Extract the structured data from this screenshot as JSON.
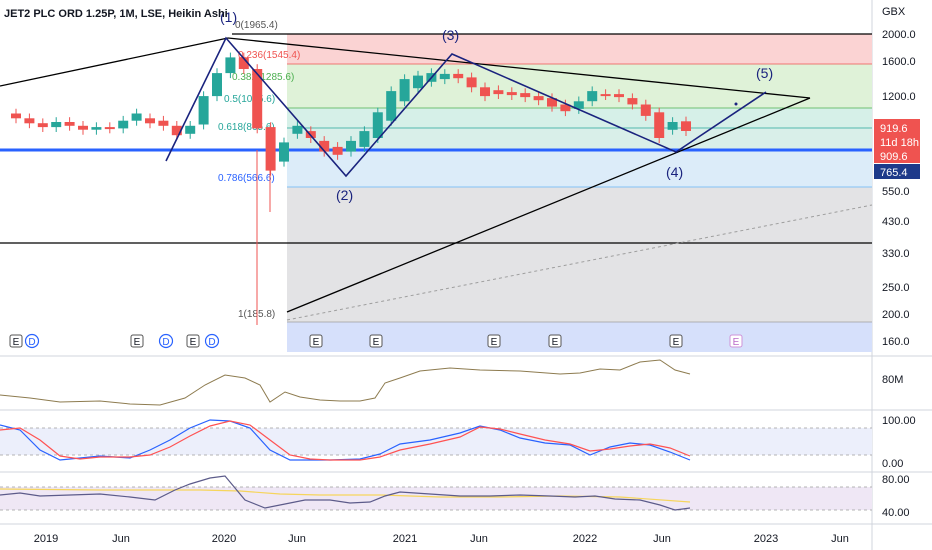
{
  "title": "JET2 PLC ORD 1.25P, 1M, LSE, Heikin Ashi",
  "currency": "GBX",
  "colors": {
    "up": "#26a69a",
    "down": "#ef5350",
    "support": "#2962ff",
    "wave": "#1a237e",
    "volume_line": "#8d7b4f",
    "stoch_k": "#2962ff",
    "stoch_d": "#ff5252",
    "rsi": "#5c5b8a",
    "rsi_ma": "#f6d55c",
    "price_tag": "#ef5350",
    "support_tag": "#1e3a8a"
  },
  "price_axis": {
    "scale": "log",
    "ticks": [
      "2000.0",
      "1600.0",
      "1200.0",
      "919.6",
      "909.6",
      "765.4",
      "550.0",
      "430.0",
      "330.0",
      "250.0",
      "200.0",
      "160.0"
    ],
    "tick_values": [
      2000,
      1600,
      1200,
      919.6,
      909.6,
      765.4,
      550,
      430,
      330,
      250,
      200,
      160
    ],
    "last_price": "919.6",
    "countdown": "11d 18h",
    "prev_close": "909.6",
    "support_value": "765.4"
  },
  "time_axis": {
    "labels": [
      "2019",
      "Jun",
      "2020",
      "Jun",
      "2021",
      "Jun",
      "2022",
      "Jun",
      "2023",
      "Jun"
    ]
  },
  "fib_levels": [
    {
      "ratio": "0",
      "value": "1965.4",
      "label": "0(1965.4)"
    },
    {
      "ratio": "0.236",
      "value": "1545.4",
      "label": "0.236(1545.4)"
    },
    {
      "ratio": "0.382",
      "value": "1285.6",
      "label": "0.382(1285.6)"
    },
    {
      "ratio": "0.5",
      "value": "1075.6",
      "label": "0.5(1075.6)"
    },
    {
      "ratio": "0.618",
      "value": "865.6",
      "label": "0.618(865.6)"
    },
    {
      "ratio": "0.786",
      "value": "566.6",
      "label": "0.786(566.6)"
    },
    {
      "ratio": "1",
      "value": "185.8",
      "label": "1(185.8)"
    }
  ],
  "wave_labels": [
    "(1)",
    "(2)",
    "(3)",
    "(4)",
    "(5)"
  ],
  "earnings_markers": [
    "E",
    "D",
    "E",
    "D",
    "E",
    "D",
    "E",
    "E",
    "E",
    "E",
    "E",
    "E"
  ],
  "volume_label": "80M",
  "stoch_axis": [
    "100.00",
    "0.00"
  ],
  "rsi_axis": [
    "80.00",
    "40.00"
  ],
  "chart_data": {
    "type": "candlestick",
    "series_style": "Heikin Ashi",
    "interval": "1M",
    "candles": [
      {
        "date": "2018-10",
        "open": 1040,
        "close": 1000
      },
      {
        "date": "2018-11",
        "open": 1000,
        "close": 960
      },
      {
        "date": "2018-12",
        "open": 960,
        "close": 930
      },
      {
        "date": "2019-01",
        "open": 930,
        "close": 970
      },
      {
        "date": "2019-02",
        "open": 970,
        "close": 940
      },
      {
        "date": "2019-03",
        "open": 940,
        "close": 910
      },
      {
        "date": "2019-04",
        "open": 910,
        "close": 930
      },
      {
        "date": "2019-05",
        "open": 930,
        "close": 920
      },
      {
        "date": "2019-06",
        "open": 920,
        "close": 980
      },
      {
        "date": "2019-07",
        "open": 980,
        "close": 1040
      },
      {
        "date": "2019-08",
        "open": 1000,
        "close": 960
      },
      {
        "date": "2019-09",
        "open": 980,
        "close": 940
      },
      {
        "date": "2019-10",
        "open": 940,
        "close": 870
      },
      {
        "date": "2019-11",
        "open": 880,
        "close": 940
      },
      {
        "date": "2019-12",
        "open": 950,
        "close": 1200
      },
      {
        "date": "2020-01",
        "open": 1200,
        "close": 1450
      },
      {
        "date": "2020-02",
        "open": 1450,
        "close": 1650
      },
      {
        "date": "2020-03",
        "open": 1650,
        "close": 1500
      },
      {
        "date": "2020-04",
        "open": 1500,
        "close": 920
      },
      {
        "date": "2020-05",
        "open": 930,
        "close": 650
      },
      {
        "date": "2020-06",
        "open": 700,
        "close": 820
      },
      {
        "date": "2020-07",
        "open": 880,
        "close": 940
      },
      {
        "date": "2020-08",
        "open": 900,
        "close": 850
      },
      {
        "date": "2020-09",
        "open": 830,
        "close": 760
      },
      {
        "date": "2020-10",
        "open": 790,
        "close": 740
      },
      {
        "date": "2020-11",
        "open": 760,
        "close": 830
      },
      {
        "date": "2020-12",
        "open": 790,
        "close": 900
      },
      {
        "date": "2021-01",
        "open": 850,
        "close": 1050
      },
      {
        "date": "2021-02",
        "open": 980,
        "close": 1250
      },
      {
        "date": "2021-03",
        "open": 1150,
        "close": 1380
      },
      {
        "date": "2021-04",
        "open": 1280,
        "close": 1420
      },
      {
        "date": "2021-05",
        "open": 1350,
        "close": 1450
      },
      {
        "date": "2021-06",
        "open": 1380,
        "close": 1440
      },
      {
        "date": "2021-07",
        "open": 1440,
        "close": 1390
      },
      {
        "date": "2021-08",
        "open": 1400,
        "close": 1290
      },
      {
        "date": "2021-09",
        "open": 1290,
        "close": 1200
      },
      {
        "date": "2021-10",
        "open": 1260,
        "close": 1220
      },
      {
        "date": "2021-11",
        "open": 1240,
        "close": 1210
      },
      {
        "date": "2021-12",
        "open": 1230,
        "close": 1190
      },
      {
        "date": "2022-01",
        "open": 1200,
        "close": 1160
      },
      {
        "date": "2022-02",
        "open": 1180,
        "close": 1100
      },
      {
        "date": "2022-03",
        "open": 1120,
        "close": 1060
      },
      {
        "date": "2022-04",
        "open": 1080,
        "close": 1150
      },
      {
        "date": "2022-05",
        "open": 1150,
        "close": 1250
      },
      {
        "date": "2022-06",
        "open": 1220,
        "close": 1210
      },
      {
        "date": "2022-07",
        "open": 1220,
        "close": 1190
      },
      {
        "date": "2022-08",
        "open": 1180,
        "close": 1120
      },
      {
        "date": "2022-09",
        "open": 1120,
        "close": 1020
      },
      {
        "date": "2022-10",
        "open": 1050,
        "close": 850
      },
      {
        "date": "2022-11",
        "open": 910,
        "close": 970
      },
      {
        "date": "2022-12",
        "open": 975,
        "close": 900
      }
    ],
    "support_level": 765.4,
    "last_price": 919.6
  }
}
